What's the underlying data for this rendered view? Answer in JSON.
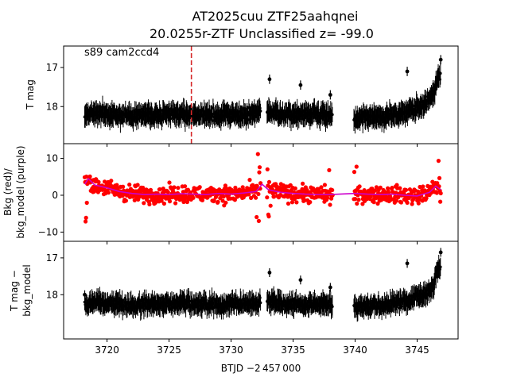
{
  "figure": {
    "title_line1": "AT2025cuu  ZTF25aahqnei",
    "title_line2": "20.0255r-ZTF Unclassified z= -99.0",
    "xlabel": "BTJD −2 457 000"
  },
  "chart_data": [
    {
      "type": "scatter",
      "panel": "top",
      "ylabel": "T mag",
      "ylim": [
        18.95,
        16.45
      ],
      "y_inverted": true,
      "xlim": [
        3716.5,
        3748.3
      ],
      "xticks": [
        3720,
        3725,
        3730,
        3735,
        3740,
        3745
      ],
      "xtick_labels": [
        "3720",
        "3725",
        "3730",
        "3735",
        "3740",
        "3745"
      ],
      "yticks": [
        17,
        18
      ],
      "ytick_labels": [
        "17",
        "18"
      ],
      "annotation": "s89 cam2ccd4",
      "vline_x": 3726.8,
      "vline_color": "#d62728",
      "point_color": "#000000",
      "segments": [
        [
          3718.2,
          3732.4
        ],
        [
          3732.9,
          3738.2
        ],
        [
          3739.9,
          3746.9
        ]
      ],
      "baseline_mag": 18.2,
      "series": [
        {
          "x": [
            3718.2,
            3719.0,
            3720.0,
            3721.0,
            3722.0,
            3723.0,
            3724.0,
            3725.0,
            3726.0,
            3727.0,
            3728.0,
            3729.0,
            3730.0,
            3731.0,
            3732.0,
            3732.4,
            3733.0,
            3734.0,
            3735.0,
            3736.0,
            3737.0,
            3738.2,
            3740.0,
            3741.0,
            3742.0,
            3743.0,
            3744.0,
            3745.0,
            3745.8,
            3746.3,
            3746.6,
            3746.9
          ],
          "y": [
            18.2,
            18.15,
            18.2,
            18.2,
            18.25,
            18.2,
            18.2,
            18.2,
            18.2,
            18.2,
            18.2,
            18.25,
            18.2,
            18.2,
            18.2,
            18.1,
            18.1,
            18.2,
            18.2,
            18.2,
            18.2,
            18.25,
            18.3,
            18.25,
            18.25,
            18.2,
            18.15,
            18.0,
            17.9,
            17.7,
            17.3,
            17.2
          ]
        }
      ],
      "outliers": [
        [
          3733.1,
          17.3
        ],
        [
          3735.6,
          17.45
        ],
        [
          3738.0,
          17.7
        ],
        [
          3744.2,
          17.1
        ],
        [
          3746.9,
          16.8
        ]
      ]
    },
    {
      "type": "scatter",
      "panel": "middle",
      "ylabel_line1": "Bkg (red)/",
      "ylabel_line2": "bkg_model (purple)",
      "ylim": [
        -12.5,
        14.0
      ],
      "xlim": [
        3716.5,
        3748.3
      ],
      "yticks": [
        -10,
        0,
        10
      ],
      "ytick_labels": [
        "−10",
        "0",
        "10"
      ],
      "point_color": "#ff0000",
      "model_color": "#cc00cc",
      "series": [
        {
          "name": "bkg_model",
          "x": [
            3718.2,
            3718.5,
            3719.0,
            3720.0,
            3721.0,
            3722.0,
            3723.0,
            3724.0,
            3725.0,
            3726.0,
            3727.0,
            3728.0,
            3729.0,
            3730.0,
            3731.0,
            3732.0,
            3732.5,
            3733.0,
            3734.0,
            3735.0,
            3736.0,
            3737.0,
            3738.0,
            3740.0,
            3741.0,
            3742.0,
            3743.0,
            3744.0,
            3745.0,
            3746.0,
            3746.5,
            3746.9
          ],
          "y": [
            3.0,
            4.5,
            2.8,
            2.0,
            1.0,
            0.5,
            0.2,
            0.3,
            0.2,
            0.4,
            0.3,
            0.2,
            0.5,
            0.3,
            0.6,
            1.0,
            3.0,
            1.5,
            0.8,
            0.5,
            0.3,
            0.2,
            0.2,
            0.5,
            0.3,
            0.2,
            0.3,
            0.0,
            -0.2,
            0.8,
            2.5,
            1.5
          ]
        }
      ]
    },
    {
      "type": "scatter",
      "panel": "bottom",
      "ylabel_line1": "T mag −",
      "ylabel_line2": "bkg_model",
      "ylim": [
        19.2,
        16.55
      ],
      "y_inverted": true,
      "xlim": [
        3716.5,
        3748.3
      ],
      "yticks": [
        17,
        18
      ],
      "ytick_labels": [
        "17",
        "18"
      ],
      "point_color": "#000000",
      "outliers": [
        [
          3733.1,
          17.4
        ],
        [
          3735.6,
          17.6
        ],
        [
          3738.0,
          17.8
        ],
        [
          3744.2,
          17.15
        ],
        [
          3746.9,
          16.85
        ],
        [
          3718.2,
          18.0
        ]
      ]
    }
  ]
}
